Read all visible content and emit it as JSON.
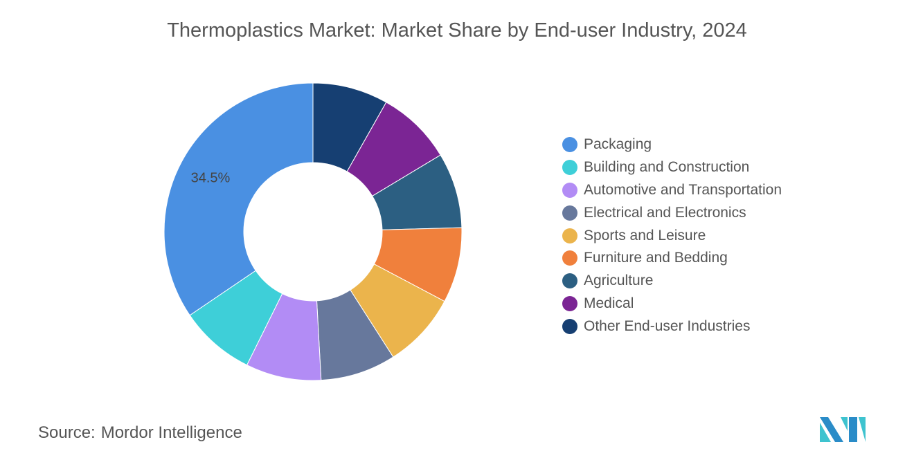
{
  "chart_data": {
    "type": "pie",
    "style": "donut",
    "title": "Thermoplastics Market: Market Share by End-user Industry, 2024",
    "categories": [
      "Packaging",
      "Building and Construction",
      "Automotive and Transportation",
      "Electrical and Electronics",
      "Sports and Leisure",
      "Furniture and Bedding",
      "Agriculture",
      "Medical",
      "Other End-user Industries"
    ],
    "values": [
      34.5,
      8.19,
      8.19,
      8.19,
      8.19,
      8.19,
      8.19,
      8.19,
      8.19
    ],
    "colors": [
      "#4a90e2",
      "#3ecfd8",
      "#b28cf5",
      "#67789c",
      "#ebb44c",
      "#f0803c",
      "#2c5f82",
      "#7b2594",
      "#163f72"
    ],
    "data_labels": [
      "34.5%",
      "",
      "",
      "",
      "",
      "",
      "",
      "",
      ""
    ],
    "legend_position": "right"
  },
  "source": {
    "label": "Source:",
    "value": "Mordor Intelligence"
  }
}
